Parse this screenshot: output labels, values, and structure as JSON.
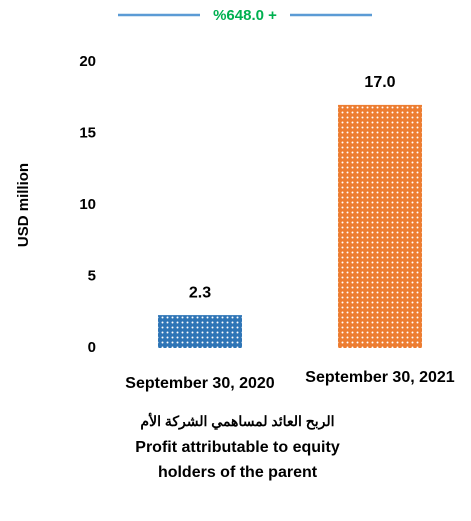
{
  "chart_data": {
    "type": "bar",
    "annotation": "%648.0 +",
    "annotation_color": "#00b050",
    "annotation_line_color": "#5b9bd5",
    "ylabel": "USD million",
    "categories": [
      "September 30, 2020",
      "September 30, 2021"
    ],
    "values": [
      2.3,
      17
    ],
    "value_labels": [
      "2.3",
      "17.0"
    ],
    "colors": [
      "#2e75b6",
      "#ed7d31"
    ],
    "pattern": "dots",
    "ylim": [
      0,
      20
    ],
    "yticks": [
      0,
      5,
      10,
      15,
      20
    ],
    "grid": false,
    "title_ar": "الربح العائد لمساهمي الشركة الأم",
    "title": "Profit attributable to equity holders of the parent"
  }
}
